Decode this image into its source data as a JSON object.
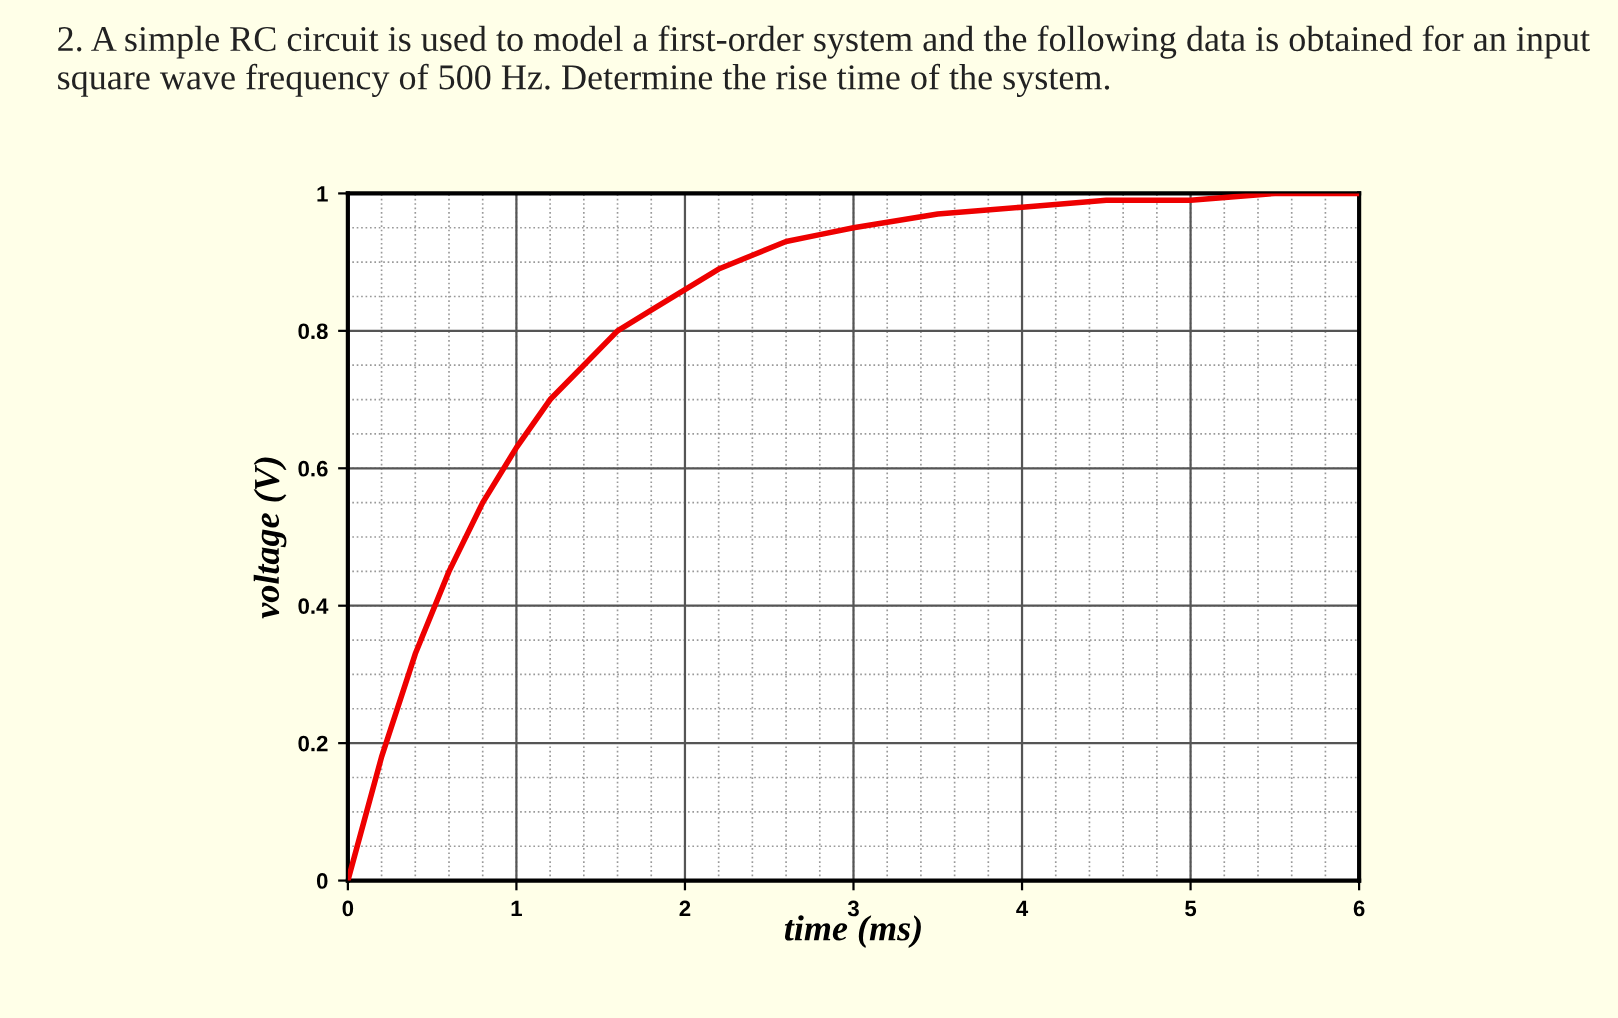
{
  "chart_data": {
    "type": "line",
    "title": "2. A simple RC circuit is used to model a first-order system and the following data is obtained for an input square wave frequency of 500 Hz. Determine the rise time of the system.",
    "xlabel": "time (ms)",
    "ylabel": "voltage (V)",
    "x": [
      0,
      0.2,
      0.4,
      0.6,
      0.8,
      1,
      1.2,
      1.4,
      1.6,
      1.8,
      2,
      2.2,
      2.4,
      2.6,
      2.8,
      3,
      3.5,
      4,
      4.5,
      5,
      5.5,
      6
    ],
    "series": [
      {
        "color": "#ee0000",
        "values": [
          0,
          0.18,
          0.33,
          0.45,
          0.55,
          0.63,
          0.7,
          0.75,
          0.8,
          0.83,
          0.86,
          0.89,
          0.91,
          0.93,
          0.94,
          0.95,
          0.97,
          0.98,
          0.99,
          0.99,
          1.0,
          1.0
        ]
      }
    ],
    "xlim": [
      0,
      6
    ],
    "ylim": [
      0,
      1
    ],
    "xticks": [
      0,
      1,
      2,
      3,
      4,
      5,
      6
    ],
    "yticks": [
      0,
      0.2,
      0.4,
      0.6,
      0.8,
      1
    ],
    "grid": true,
    "marker": "none",
    "line_style": "solid"
  }
}
